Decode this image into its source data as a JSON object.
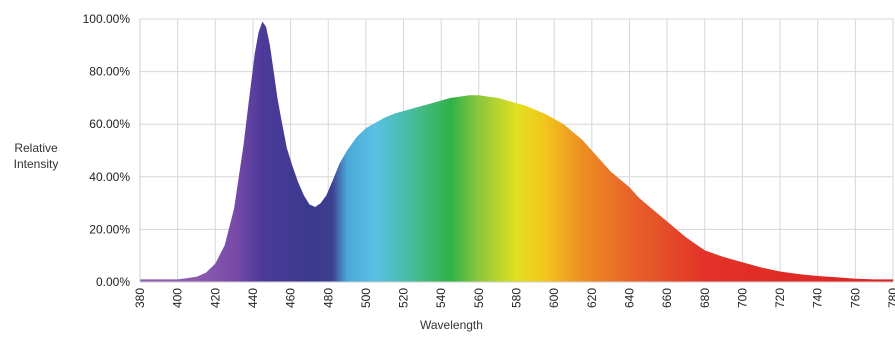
{
  "chart_data": {
    "type": "area",
    "xlabel": "Wavelength",
    "ylabel_lines": [
      "Relative",
      "Intensity"
    ],
    "xlim": [
      380,
      780
    ],
    "ylim": [
      0,
      100
    ],
    "x_ticks": [
      "380",
      "400",
      "420",
      "440",
      "460",
      "480",
      "500",
      "520",
      "540",
      "560",
      "580",
      "600",
      "620",
      "640",
      "660",
      "680",
      "700",
      "720",
      "740",
      "760",
      "780"
    ],
    "y_ticks": [
      "0.00%",
      "20.00%",
      "40.00%",
      "60.00%",
      "80.00%",
      "100.00%"
    ],
    "grid": true,
    "series": [
      {
        "x": [
          380,
          390,
          400,
          405,
          410,
          415,
          420,
          425,
          430,
          435,
          438,
          441,
          443,
          445,
          447,
          449,
          451,
          453,
          455,
          458,
          461,
          464,
          467,
          470,
          473,
          476,
          479,
          482,
          486,
          490,
          495,
          500,
          505,
          510,
          515,
          520,
          525,
          530,
          535,
          540,
          545,
          550,
          555,
          560,
          565,
          570,
          575,
          580,
          585,
          590,
          595,
          600,
          605,
          610,
          615,
          620,
          625,
          630,
          635,
          640,
          645,
          650,
          655,
          660,
          665,
          670,
          675,
          680,
          690,
          700,
          710,
          720,
          730,
          740,
          750,
          760,
          770,
          780
        ],
        "y": [
          1,
          1,
          1,
          1.5,
          2,
          3.5,
          7,
          14,
          28,
          52,
          70,
          87,
          95,
          99,
          97,
          90,
          80,
          70,
          62,
          51,
          44,
          38,
          33,
          29.5,
          28.5,
          30,
          33,
          38,
          45,
          50,
          55,
          58.5,
          60.5,
          62.5,
          64,
          65,
          66,
          67,
          68,
          69,
          70,
          70.5,
          71,
          71,
          70.5,
          70,
          69,
          68,
          67,
          65.5,
          64,
          62,
          60,
          57,
          54,
          50,
          46,
          42,
          39,
          36,
          32,
          29,
          26,
          23,
          20,
          17,
          14.5,
          12,
          9.5,
          7.5,
          5.5,
          4,
          3,
          2.3,
          1.8,
          1.2,
          1,
          1
        ]
      }
    ],
    "spectrum_colors": [
      {
        "nm": 410,
        "color": "#8b5db0"
      },
      {
        "nm": 430,
        "color": "#7a4aa8"
      },
      {
        "nm": 445,
        "color": "#4b3a9a"
      },
      {
        "nm": 470,
        "color": "#3b3a8e"
      },
      {
        "nm": 482,
        "color": "#3c3f8e"
      },
      {
        "nm": 490,
        "color": "#4aa8d8"
      },
      {
        "nm": 505,
        "color": "#59c1e3"
      },
      {
        "nm": 520,
        "color": "#49bdb0"
      },
      {
        "nm": 535,
        "color": "#3db76d"
      },
      {
        "nm": 545,
        "color": "#2fb148"
      },
      {
        "nm": 560,
        "color": "#8cc63e"
      },
      {
        "nm": 580,
        "color": "#e1e020"
      },
      {
        "nm": 595,
        "color": "#f2c61e"
      },
      {
        "nm": 615,
        "color": "#ee8e22"
      },
      {
        "nm": 640,
        "color": "#e8642a"
      },
      {
        "nm": 680,
        "color": "#e23228"
      },
      {
        "nm": 780,
        "color": "#dc2324"
      }
    ]
  }
}
